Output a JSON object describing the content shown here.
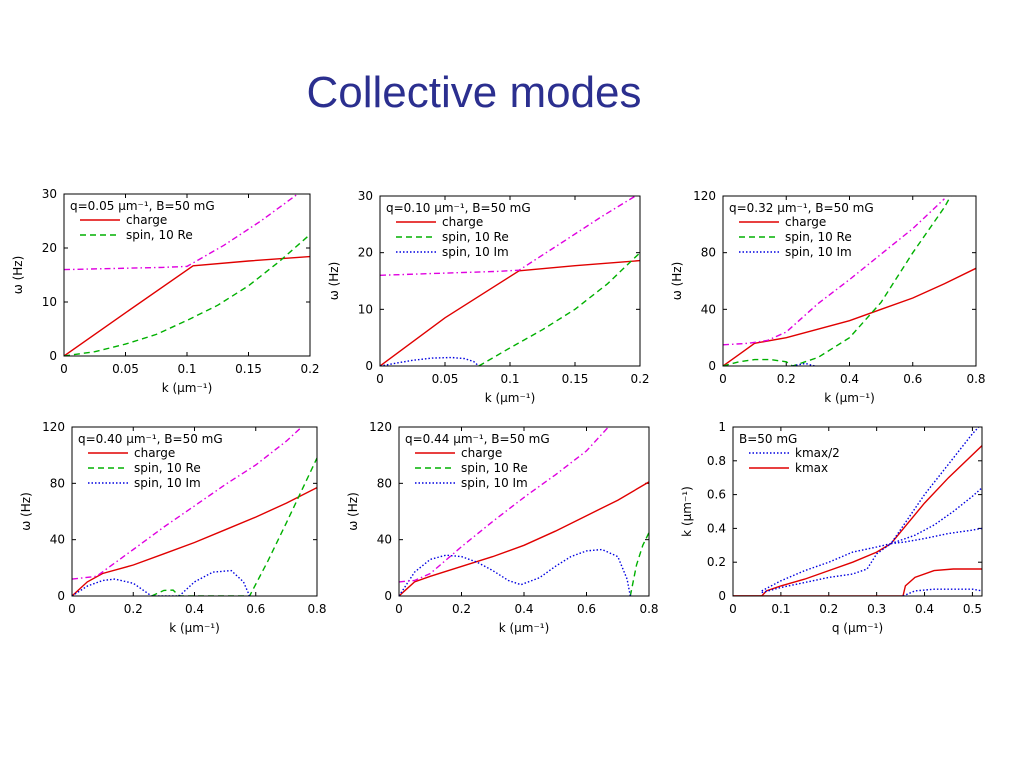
{
  "slide": {
    "title": "Collective modes"
  },
  "chart_data": [
    {
      "type": "line",
      "annotation": "q=0.05 µm⁻¹, B=50 mG",
      "xlabel": "k (µm⁻¹)",
      "ylabel": "ω (Hz)",
      "xlim": [
        0,
        0.2
      ],
      "ylim": [
        0,
        30
      ],
      "xticks": [
        "0",
        "0.05",
        "0.1",
        "0.15",
        "0.2"
      ],
      "xtick_values": [
        0,
        0.05,
        0.1,
        0.15,
        0.2
      ],
      "yticks": [
        "0",
        "10",
        "20",
        "30"
      ],
      "ytick_values": [
        0,
        10,
        20,
        30
      ],
      "legend_position": "top-left",
      "series": [
        {
          "name": "charge",
          "color": "#e00000",
          "dash": "solid",
          "x": [
            0,
            0.05,
            0.105,
            0.15,
            0.2
          ],
          "y": [
            0,
            8,
            16.7,
            17.6,
            18.4
          ]
        },
        {
          "name": "spin, 10 Re",
          "color": "#00b000",
          "dash": "dashed",
          "x": [
            0,
            0.025,
            0.05,
            0.075,
            0.1,
            0.125,
            0.15,
            0.175,
            0.2
          ],
          "y": [
            0,
            0.8,
            2.2,
            4,
            6.6,
            9.4,
            13,
            17.5,
            22.5
          ]
        },
        {
          "name": "",
          "color": "#e000e0",
          "dash": "dashdot",
          "x": [
            0,
            0.04,
            0.08,
            0.1,
            0.13,
            0.16,
            0.19
          ],
          "y": [
            16,
            16.2,
            16.4,
            16.6,
            20.5,
            25,
            30
          ]
        }
      ]
    },
    {
      "type": "line",
      "annotation": "q=0.10 µm⁻¹, B=50 mG",
      "xlabel": "k (µm⁻¹)",
      "ylabel": "ω (Hz)",
      "xlim": [
        0,
        0.2
      ],
      "ylim": [
        0,
        30
      ],
      "xticks": [
        "0",
        "0.05",
        "0.1",
        "0.15",
        "0.2"
      ],
      "xtick_values": [
        0,
        0.05,
        0.1,
        0.15,
        0.2
      ],
      "yticks": [
        "0",
        "10",
        "20",
        "30"
      ],
      "ytick_values": [
        0,
        10,
        20,
        30
      ],
      "legend_position": "top-left",
      "series": [
        {
          "name": "charge",
          "color": "#e00000",
          "dash": "solid",
          "x": [
            0,
            0.05,
            0.107,
            0.15,
            0.2
          ],
          "y": [
            0,
            8.5,
            16.8,
            17.7,
            18.6
          ]
        },
        {
          "name": "spin, 10 Re",
          "color": "#00b000",
          "dash": "dashed",
          "x": [
            0.076,
            0.1,
            0.125,
            0.15,
            0.175,
            0.2
          ],
          "y": [
            0,
            3.2,
            6.4,
            10,
            14.5,
            20
          ]
        },
        {
          "name": "spin, 10 Im",
          "color": "#0000e0",
          "dash": "dotted",
          "x": [
            0,
            0.01,
            0.025,
            0.04,
            0.055,
            0.065,
            0.072,
            0.076
          ],
          "y": [
            0,
            0.4,
            1,
            1.4,
            1.5,
            1.3,
            0.8,
            0
          ]
        },
        {
          "name": "",
          "color": "#e000e0",
          "dash": "dashdot",
          "x": [
            0,
            0.05,
            0.09,
            0.107,
            0.14,
            0.17,
            0.2
          ],
          "y": [
            16,
            16.4,
            16.7,
            16.9,
            21.8,
            26.3,
            30.5
          ]
        }
      ]
    },
    {
      "type": "line",
      "annotation": "q=0.32 µm⁻¹, B=50 mG",
      "xlabel": "k (µm⁻¹)",
      "ylabel": "ω (Hz)",
      "xlim": [
        0,
        0.8
      ],
      "ylim": [
        0,
        120
      ],
      "xticks": [
        "0",
        "0.2",
        "0.4",
        "0.6",
        "0.8"
      ],
      "xtick_values": [
        0,
        0.2,
        0.4,
        0.6,
        0.8
      ],
      "yticks": [
        "0",
        "40",
        "80",
        "120"
      ],
      "ytick_values": [
        0,
        40,
        80,
        120
      ],
      "legend_position": "top-left",
      "series": [
        {
          "name": "charge",
          "color": "#e00000",
          "dash": "solid",
          "x": [
            0,
            0.05,
            0.1,
            0.2,
            0.3,
            0.4,
            0.5,
            0.6,
            0.7,
            0.8
          ],
          "y": [
            0,
            8,
            16,
            20,
            26,
            32,
            40,
            48,
            58,
            69
          ]
        },
        {
          "name": "spin, 10 Re",
          "color": "#00b000",
          "dash": "dashed",
          "x": [
            0,
            0.05,
            0.1,
            0.15,
            0.2,
            0.22,
            0.3,
            0.4,
            0.5,
            0.6,
            0.7,
            0.72
          ],
          "y": [
            0,
            3,
            4.5,
            4.5,
            3,
            0,
            6,
            20,
            45,
            80,
            112,
            120
          ]
        },
        {
          "name": "spin, 10 Im",
          "color": "#0000e0",
          "dash": "dotted",
          "x": [
            0.22,
            0.26,
            0.29
          ],
          "y": [
            0,
            1.8,
            0
          ]
        },
        {
          "name": "",
          "color": "#e000e0",
          "dash": "dashdot",
          "x": [
            0,
            0.08,
            0.14,
            0.2,
            0.3,
            0.4,
            0.5,
            0.6,
            0.7
          ],
          "y": [
            15,
            16,
            18,
            24,
            44,
            61,
            79,
            97,
            118
          ]
        }
      ]
    },
    {
      "type": "line",
      "annotation": "q=0.40 µm⁻¹, B=50 mG",
      "xlabel": "k (µm⁻¹)",
      "ylabel": "ω (Hz)",
      "xlim": [
        0,
        0.8
      ],
      "ylim": [
        0,
        120
      ],
      "xticks": [
        "0",
        "0.2",
        "0.4",
        "0.6",
        "0.8"
      ],
      "xtick_values": [
        0,
        0.2,
        0.4,
        0.6,
        0.8
      ],
      "yticks": [
        "0",
        "40",
        "80",
        "120"
      ],
      "ytick_values": [
        0,
        40,
        80,
        120
      ],
      "legend_position": "top-left",
      "series": [
        {
          "name": "charge",
          "color": "#e00000",
          "dash": "solid",
          "x": [
            0,
            0.05,
            0.1,
            0.2,
            0.3,
            0.4,
            0.5,
            0.6,
            0.7,
            0.8
          ],
          "y": [
            0,
            10,
            16,
            22,
            30,
            38,
            47,
            56,
            66,
            77
          ]
        },
        {
          "name": "spin, 10 Re",
          "color": "#00b000",
          "dash": "dashed",
          "x": [
            0.26,
            0.3,
            0.33,
            0.35,
            0.58,
            0.64,
            0.7,
            0.75,
            0.8
          ],
          "y": [
            0,
            4,
            4.2,
            0,
            0,
            25,
            52,
            75,
            98
          ]
        },
        {
          "name": "spin, 10 Im",
          "color": "#0000e0",
          "dash": "dotted",
          "x": [
            0,
            0.05,
            0.1,
            0.14,
            0.2,
            0.26,
            0.35,
            0.4,
            0.46,
            0.52,
            0.56,
            0.58
          ],
          "y": [
            0,
            7,
            11,
            12,
            9,
            0,
            0,
            10,
            17,
            18,
            10,
            0
          ]
        },
        {
          "name": "",
          "color": "#e000e0",
          "dash": "dashdot",
          "x": [
            0,
            0.08,
            0.2,
            0.3,
            0.4,
            0.5,
            0.6,
            0.7,
            0.75
          ],
          "y": [
            12,
            14,
            33,
            49,
            64,
            79,
            93,
            110,
            120
          ]
        }
      ]
    },
    {
      "type": "line",
      "annotation": "q=0.44 µm⁻¹, B=50 mG",
      "xlabel": "k (µm⁻¹)",
      "ylabel": "ω (Hz)",
      "xlim": [
        0,
        0.8
      ],
      "ylim": [
        0,
        120
      ],
      "xticks": [
        "0",
        "0.2",
        "0.4",
        "0.6",
        "0.8"
      ],
      "xtick_values": [
        0,
        0.2,
        0.4,
        0.6,
        0.8
      ],
      "yticks": [
        "0",
        "40",
        "80",
        "120"
      ],
      "ytick_values": [
        0,
        40,
        80,
        120
      ],
      "legend_position": "top-left",
      "series": [
        {
          "name": "charge",
          "color": "#e00000",
          "dash": "solid",
          "x": [
            0,
            0.05,
            0.1,
            0.2,
            0.3,
            0.4,
            0.5,
            0.6,
            0.7,
            0.8
          ],
          "y": [
            0,
            10,
            14,
            21,
            28,
            36,
            46,
            57,
            68,
            81
          ]
        },
        {
          "name": "spin, 10 Re",
          "color": "#00b000",
          "dash": "dashed",
          "x": [
            0.74,
            0.76,
            0.78,
            0.8
          ],
          "y": [
            0,
            22,
            36,
            45
          ]
        },
        {
          "name": "spin, 10 Im",
          "color": "#0000e0",
          "dash": "dotted",
          "x": [
            0,
            0.05,
            0.1,
            0.15,
            0.2,
            0.25,
            0.3,
            0.35,
            0.39,
            0.45,
            0.5,
            0.55,
            0.6,
            0.65,
            0.7,
            0.73,
            0.74
          ],
          "y": [
            0,
            17,
            26,
            29,
            28,
            24,
            18,
            11,
            8,
            13,
            21,
            28,
            32,
            33,
            28,
            12,
            0
          ]
        },
        {
          "name": "",
          "color": "#e000e0",
          "dash": "dashdot",
          "x": [
            0,
            0.05,
            0.1,
            0.2,
            0.3,
            0.4,
            0.5,
            0.6,
            0.67
          ],
          "y": [
            10,
            11,
            16,
            35,
            53,
            70,
            86,
            103,
            120
          ]
        }
      ]
    },
    {
      "type": "line",
      "annotation": "B=50 mG",
      "xlabel": "q (µm⁻¹)",
      "ylabel": "k (µm⁻¹)",
      "xlim": [
        0,
        0.52
      ],
      "ylim": [
        0,
        1
      ],
      "xticks": [
        "0",
        "0.1",
        "0.2",
        "0.3",
        "0.4",
        "0.5"
      ],
      "xtick_values": [
        0,
        0.1,
        0.2,
        0.3,
        0.4,
        0.5
      ],
      "yticks": [
        "0",
        "0.2",
        "0.4",
        "0.6",
        "0.8",
        "1"
      ],
      "ytick_values": [
        0,
        0.2,
        0.4,
        0.6,
        0.8,
        1
      ],
      "legend_position": "top-left",
      "series": [
        {
          "name": "k_max",
          "color": "#e00000",
          "dash": "solid",
          "x": [
            0,
            0.06,
            0.07,
            0.1,
            0.15,
            0.2,
            0.25,
            0.3,
            0.33,
            0.4,
            0.45,
            0.52
          ],
          "y": [
            0,
            0,
            0.03,
            0.06,
            0.1,
            0.15,
            0.2,
            0.26,
            0.31,
            0.55,
            0.7,
            0.89
          ]
        },
        {
          "name": "k_max",
          "color": "#e00000",
          "dash": "solid",
          "x": [
            0,
            0.355,
            0.36,
            0.38,
            0.42,
            0.46,
            0.5,
            0.52
          ],
          "y": [
            0,
            0,
            0.06,
            0.11,
            0.15,
            0.16,
            0.16,
            0.16
          ]
        },
        {
          "name": "k_max/2",
          "color": "#0000e0",
          "dash": "dotted",
          "x": [
            0.06,
            0.1,
            0.15,
            0.2,
            0.25,
            0.3,
            0.33,
            0.4,
            0.45,
            0.5,
            0.52
          ],
          "y": [
            0.03,
            0.09,
            0.15,
            0.2,
            0.26,
            0.29,
            0.31,
            0.6,
            0.78,
            0.96,
            1.02
          ]
        },
        {
          "name": "k_max/2",
          "color": "#0000e0",
          "dash": "dotted",
          "x": [
            0.06,
            0.1,
            0.15,
            0.2,
            0.25,
            0.28,
            0.3,
            0.33
          ],
          "y": [
            0.02,
            0.05,
            0.08,
            0.11,
            0.13,
            0.16,
            0.25,
            0.31
          ]
        },
        {
          "name": "k_max/2",
          "color": "#0000e0",
          "dash": "dotted",
          "x": [
            0.33,
            0.38,
            0.42,
            0.46,
            0.5,
            0.52
          ],
          "y": [
            0.31,
            0.36,
            0.42,
            0.5,
            0.59,
            0.64
          ]
        },
        {
          "name": "k_max/2",
          "color": "#0000e0",
          "dash": "dotted",
          "x": [
            0.33,
            0.36,
            0.4,
            0.45,
            0.5,
            0.52
          ],
          "y": [
            0.31,
            0.32,
            0.34,
            0.37,
            0.39,
            0.4
          ]
        },
        {
          "name": "k_max/2",
          "color": "#0000e0",
          "dash": "dotted",
          "x": [
            0.355,
            0.38,
            0.42,
            0.46,
            0.5,
            0.52
          ],
          "y": [
            0,
            0.03,
            0.04,
            0.04,
            0.04,
            0.03
          ]
        }
      ]
    }
  ]
}
